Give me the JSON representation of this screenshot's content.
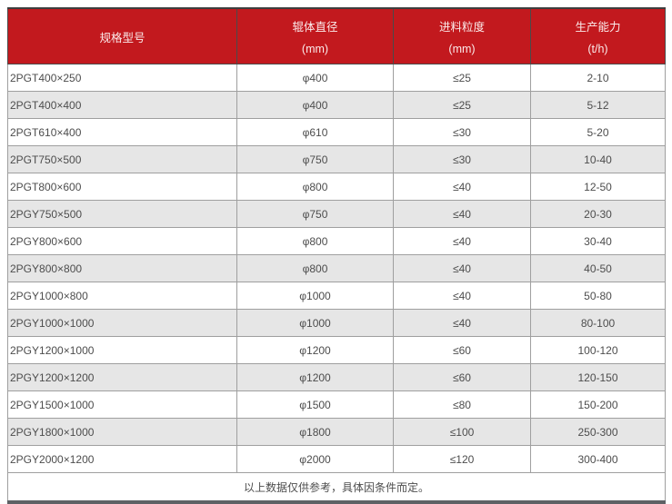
{
  "colors": {
    "header_bg": "#c2191e",
    "header_text": "#fbeaea",
    "row_alt_bg": "#e6e6e6",
    "inner_border": "#9f9f9f",
    "outer_border_bottom": "#5e6165",
    "body_text": "#4d4d4d"
  },
  "chart_data": {
    "type": "table",
    "columns": [
      {
        "name": "spec-model",
        "line1": "规格型号",
        "line2": ""
      },
      {
        "name": "roller-diameter",
        "line1": "辊体直径",
        "line2": "(mm)"
      },
      {
        "name": "feed-size",
        "line1": "进料粒度",
        "line2": "(mm)"
      },
      {
        "name": "capacity",
        "line1": "生产能力",
        "line2": "(t/h)"
      }
    ],
    "rows": [
      [
        "2PGT400×250",
        "φ400",
        "≤25",
        "2-10"
      ],
      [
        "2PGT400×400",
        "φ400",
        "≤25",
        "5-12"
      ],
      [
        "2PGT610×400",
        "φ610",
        "≤30",
        "5-20"
      ],
      [
        "2PGT750×500",
        "φ750",
        "≤30",
        "10-40"
      ],
      [
        "2PGT800×600",
        "φ800",
        "≤40",
        "12-50"
      ],
      [
        "2PGY750×500",
        "φ750",
        "≤40",
        "20-30"
      ],
      [
        "2PGY800×600",
        "φ800",
        "≤40",
        "30-40"
      ],
      [
        "2PGY800×800",
        "φ800",
        "≤40",
        "40-50"
      ],
      [
        "2PGY1000×800",
        "φ1000",
        "≤40",
        "50-80"
      ],
      [
        "2PGY1000×1000",
        "φ1000",
        "≤40",
        "80-100"
      ],
      [
        "2PGY1200×1000",
        "φ1200",
        "≤60",
        "100-120"
      ],
      [
        "2PGY1200×1200",
        "φ1200",
        "≤60",
        "120-150"
      ],
      [
        "2PGY1500×1000",
        "φ1500",
        "≤80",
        "150-200"
      ],
      [
        "2PGY1800×1000",
        "φ1800",
        "≤100",
        "250-300"
      ],
      [
        "2PGY2000×1200",
        "φ2000",
        "≤120",
        "300-400"
      ]
    ],
    "footer_note": "以上数据仅供参考，具体因条件而定。"
  }
}
